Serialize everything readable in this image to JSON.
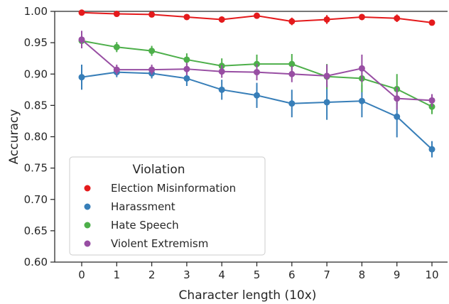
{
  "chart_data": {
    "type": "line",
    "title": "",
    "xlabel": "Character length (10x)",
    "ylabel": "Accuracy",
    "categories": [
      "0",
      "1",
      "2",
      "3",
      "4",
      "5",
      "6",
      "7",
      "8",
      "9",
      "10"
    ],
    "ylim": [
      0.6,
      1.0
    ],
    "yticks": [
      "0.60",
      "0.65",
      "0.70",
      "0.75",
      "0.80",
      "0.85",
      "0.90",
      "0.95",
      "1.00"
    ],
    "grid": false,
    "legend": {
      "title": "Violation",
      "position": "lower-left"
    },
    "series": [
      {
        "name": "Election Misinformation",
        "color": "#e41a1c",
        "values": [
          0.998,
          0.996,
          0.995,
          0.991,
          0.987,
          0.993,
          0.984,
          0.987,
          0.991,
          0.989,
          0.982
        ],
        "errors": [
          0.002,
          0.002,
          0.003,
          0.004,
          0.005,
          0.004,
          0.006,
          0.007,
          0.005,
          0.006,
          0.003
        ]
      },
      {
        "name": "Harassment",
        "color": "#377eb8",
        "values": [
          0.895,
          0.903,
          0.901,
          0.893,
          0.875,
          0.866,
          0.853,
          0.855,
          0.857,
          0.832,
          0.78
        ],
        "errors": [
          0.02,
          0.008,
          0.008,
          0.012,
          0.016,
          0.02,
          0.022,
          0.028,
          0.026,
          0.033,
          0.013
        ]
      },
      {
        "name": "Hate Speech",
        "color": "#4daf4a",
        "values": [
          0.953,
          0.943,
          0.937,
          0.923,
          0.913,
          0.916,
          0.916,
          0.896,
          0.893,
          0.876,
          0.848
        ],
        "errors": [
          0.01,
          0.008,
          0.008,
          0.01,
          0.012,
          0.015,
          0.016,
          0.02,
          0.022,
          0.024,
          0.012
        ]
      },
      {
        "name": "Violent Extremism",
        "color": "#984ea3",
        "values": [
          0.955,
          0.907,
          0.907,
          0.908,
          0.904,
          0.903,
          0.9,
          0.897,
          0.909,
          0.861,
          0.858
        ],
        "errors": [
          0.014,
          0.008,
          0.008,
          0.01,
          0.01,
          0.013,
          0.013,
          0.018,
          0.022,
          0.018,
          0.01
        ]
      }
    ]
  }
}
